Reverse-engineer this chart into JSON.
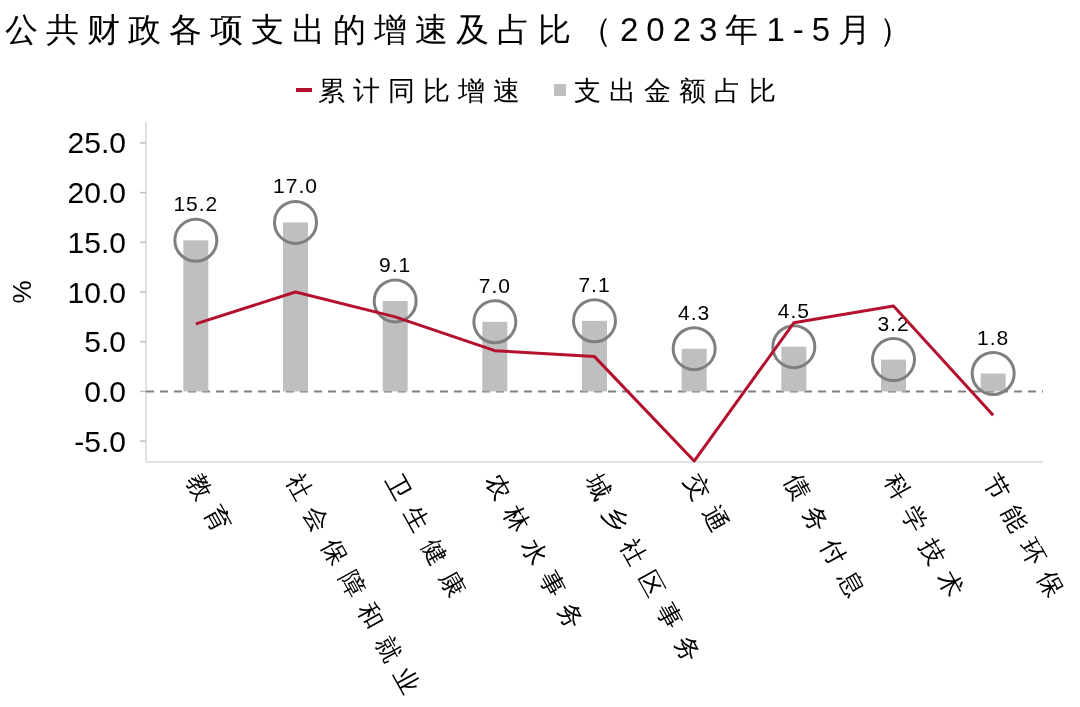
{
  "chart_data": {
    "type": "bar",
    "title": "公共财政各项支出的增速及占比（2023年1-5月）",
    "ylabel": "%",
    "categories": [
      "教育",
      "社会保障和就业",
      "卫生健康",
      "农林水事务",
      "城乡社区事务",
      "交通",
      "债务付息",
      "科学技术",
      "节能环保"
    ],
    "series": [
      {
        "name": "累计同比增速",
        "type": "line",
        "color": "#b4112f",
        "values": [
          6.8,
          10.0,
          7.5,
          4.1,
          3.5,
          -7.0,
          6.9,
          8.6,
          -2.4
        ]
      },
      {
        "name": "支出金额占比",
        "color": "#bfbfbf",
        "values": [
          15.2,
          17.0,
          9.1,
          7.0,
          7.1,
          4.3,
          4.5,
          3.2,
          1.8
        ],
        "value_labels": [
          "15.2",
          "17.0",
          "9.1",
          "7.0",
          "7.1",
          "4.3",
          "4.5",
          "3.2",
          "1.8"
        ]
      },
      {
        "type": "scatter",
        "color": "#7f7f7f",
        "marker": "circle",
        "x": [
          "教育",
          "社会保障和就业",
          "卫生健康",
          "农林水事务",
          "城乡社区事务",
          "交通",
          "债务付息",
          "科学技术",
          "节能环保"
        ],
        "values": [
          15.2,
          17.0,
          9.1,
          7.0,
          7.1,
          4.3,
          4.5,
          3.2,
          1.8
        ]
      }
    ],
    "ylim": [
      -7.1,
      27.1
    ],
    "yticks": [
      {
        "value": -5,
        "label": "-5.0"
      },
      {
        "value": 0,
        "label": "0.0"
      },
      {
        "value": 5,
        "label": "5.0"
      },
      {
        "value": 10,
        "label": "10.0"
      },
      {
        "value": 15,
        "label": "15.0"
      },
      {
        "value": 20,
        "label": "20.0"
      },
      {
        "value": 25,
        "label": "25.0"
      }
    ],
    "ref_lines": [
      {
        "axis": "y",
        "value": 0,
        "color": "#808080",
        "line_style": "dashed"
      }
    ],
    "legend": "top"
  }
}
